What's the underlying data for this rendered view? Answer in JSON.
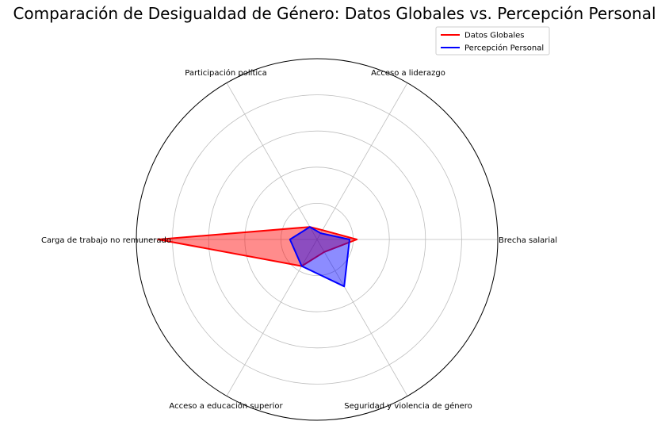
{
  "chart_data": {
    "type": "radar",
    "title": "Comparación de Desigualdad de Género: Datos Globales vs. Percepción Personal",
    "categories": [
      "Brecha salarial",
      "Acceso a liderazgo",
      "Participación política",
      "Carga de trabajo no remunerado",
      "Acceso a educación superior",
      "Seguridad y violencia de género"
    ],
    "rmax": 100,
    "grid": true,
    "legend_position": "top-right",
    "series": [
      {
        "name": "Datos Globales",
        "values": [
          22,
          6,
          8,
          88,
          17,
          8
        ],
        "color": "#ff0000",
        "fill": "#ff0000"
      },
      {
        "name": "Percepción Personal",
        "values": [
          18,
          4,
          8,
          15,
          17,
          30
        ],
        "color": "#0000ff",
        "fill": "#0000ff"
      }
    ]
  }
}
